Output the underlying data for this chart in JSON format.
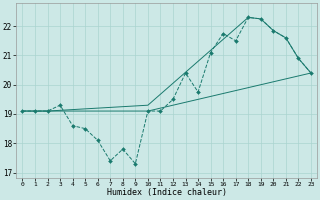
{
  "title": "",
  "xlabel": "Humidex (Indice chaleur)",
  "ylabel": "",
  "bg_color": "#cce8e6",
  "line_color": "#1a7a6e",
  "grid_color": "#aad4d0",
  "xlim": [
    -0.5,
    23.5
  ],
  "ylim": [
    16.8,
    22.8
  ],
  "yticks": [
    17,
    18,
    19,
    20,
    21,
    22
  ],
  "xticks": [
    0,
    1,
    2,
    3,
    4,
    5,
    6,
    7,
    8,
    9,
    10,
    11,
    12,
    13,
    14,
    15,
    16,
    17,
    18,
    19,
    20,
    21,
    22,
    23
  ],
  "line1_x": [
    0,
    1,
    2,
    3,
    4,
    5,
    6,
    7,
    8,
    9,
    10,
    11,
    12,
    13,
    14,
    15,
    16,
    17,
    18,
    19,
    20,
    21,
    22,
    23
  ],
  "line1_y": [
    19.1,
    19.1,
    19.1,
    19.3,
    18.6,
    18.5,
    18.1,
    17.4,
    17.8,
    17.3,
    19.1,
    19.1,
    19.5,
    20.4,
    19.75,
    21.1,
    21.75,
    21.5,
    22.3,
    22.25,
    21.85,
    21.6,
    20.9,
    20.4
  ],
  "line2_x": [
    0,
    1,
    2,
    10,
    23
  ],
  "line2_y": [
    19.1,
    19.1,
    19.1,
    19.1,
    20.4
  ],
  "line3_x": [
    0,
    1,
    2,
    10,
    18,
    19,
    20,
    21,
    22,
    23
  ],
  "line3_y": [
    19.1,
    19.1,
    19.1,
    19.3,
    22.3,
    22.25,
    21.85,
    21.6,
    20.9,
    20.4
  ]
}
